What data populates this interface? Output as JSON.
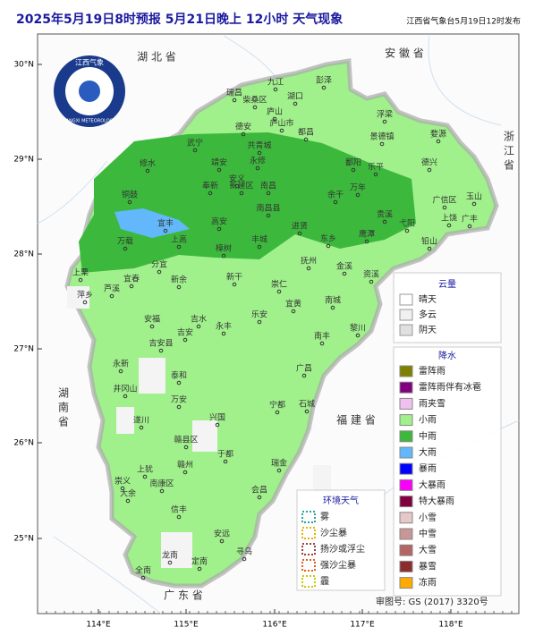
{
  "header": {
    "title": "2025年5月19日8时预报 5月21日晚上 12小时 天气现象",
    "publisher": "江西省气象台5月19日12时发布"
  },
  "logo": {
    "text_cn": "江西气象",
    "text_en": "JIANGXI METEOROLOGY"
  },
  "lat_labels": [
    "30°N",
    "29°N",
    "28°N",
    "27°N",
    "26°N",
    "25°N"
  ],
  "lon_labels": [
    "114°E",
    "115°E",
    "116°E",
    "117°E",
    "118°E"
  ],
  "provinces": [
    "湖 北 省",
    "安 徽 省",
    "浙 江 省",
    "湖 南 省",
    "福 建 省",
    "广 东 省"
  ],
  "cities": [
    "九江",
    "彭泽",
    "瑞昌",
    "柴桑区",
    "湖口",
    "庐山",
    "庐山市",
    "武宁",
    "修水",
    "德安",
    "永修",
    "共青城",
    "都昌",
    "浮梁",
    "景德镇",
    "婺源",
    "乐平",
    "鄱阳",
    "德兴",
    "靖安",
    "安义",
    "奉新",
    "新建区",
    "南昌",
    "南昌县",
    "进贤",
    "余干",
    "万年",
    "玉山",
    "上饶",
    "广丰",
    "广信区",
    "铜鼓",
    "宜丰",
    "高安",
    "丰城",
    "宜春",
    "万载",
    "上高",
    "樟树",
    "东乡",
    "抚州",
    "鹰潭",
    "贵溪",
    "弋阳",
    "铅山",
    "金溪",
    "资溪",
    "分宜",
    "新余",
    "萍乡",
    "上栗",
    "芦溪",
    "新干",
    "崇仁",
    "宜黄",
    "南城",
    "黎川",
    "南丰",
    "安福",
    "吉水",
    "永丰",
    "乐安",
    "吉安",
    "吉安县",
    "泰和",
    "永新",
    "井冈山",
    "遂川",
    "万安",
    "兴国",
    "宁都",
    "石城",
    "广昌",
    "于都",
    "赣州",
    "赣县区",
    "瑞金",
    "会昌",
    "上犹",
    "南康区",
    "崇义",
    "大余",
    "信丰",
    "安远",
    "寻乌",
    "龙南",
    "定南",
    "全南"
  ],
  "cloud_legend": {
    "title": "云量",
    "items": [
      "晴天",
      "多云",
      "阴天"
    ]
  },
  "precip_legend": {
    "title": "降水",
    "items": [
      {
        "label": "雷阵雨",
        "color": "#808000"
      },
      {
        "label": "雷阵雨伴有冰雹",
        "color": "#800080"
      },
      {
        "label": "雨夹雪",
        "color": "#f0c0f0"
      },
      {
        "label": "小雨",
        "color": "#a0f08c"
      },
      {
        "label": "中雨",
        "color": "#3cb93c"
      },
      {
        "label": "大雨",
        "color": "#62b8fa"
      },
      {
        "label": "暴雨",
        "color": "#0000fe"
      },
      {
        "label": "大暴雨",
        "color": "#fa00fa"
      },
      {
        "label": "特大暴雨",
        "color": "#800040"
      },
      {
        "label": "小雪",
        "color": "#e6c8c8"
      },
      {
        "label": "中雪",
        "color": "#c89696"
      },
      {
        "label": "大雪",
        "color": "#b46464"
      },
      {
        "label": "暴雪",
        "color": "#8c2d2d"
      },
      {
        "label": "冻雨",
        "color": "#ffaa00"
      }
    ]
  },
  "env_legend": {
    "title": "环境天气",
    "items": [
      {
        "label": "雾",
        "color": "#2aa0a0"
      },
      {
        "label": "沙尘暴",
        "color": "#e6b400"
      },
      {
        "label": "扬沙或浮尘",
        "color": "#a03c3c"
      },
      {
        "label": "强沙尘暴",
        "color": "#e06020"
      },
      {
        "label": "霾",
        "color": "#c8c800"
      }
    ]
  },
  "footer": "审图号: GS (2017) 3320号"
}
